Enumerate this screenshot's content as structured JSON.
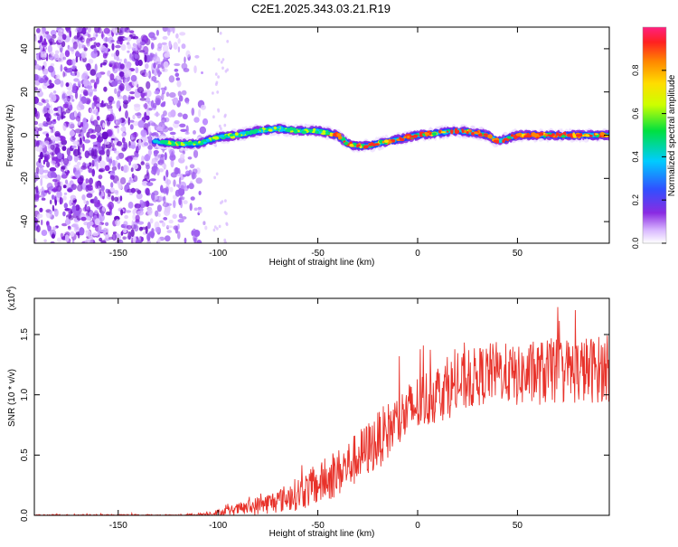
{
  "title": "C2E1.2025.343.03.21.R19",
  "chart_data": [
    {
      "type": "heatmap",
      "name": "spectrogram",
      "xlabel": "Height of straight line (km)",
      "ylabel": "Frequency (Hz)",
      "xlim": [
        -192,
        96
      ],
      "ylim": [
        -50,
        50
      ],
      "xticks": [
        -150,
        -100,
        -50,
        0,
        50
      ],
      "yticks": [
        -40,
        -20,
        0,
        20,
        40
      ],
      "xtick_labels": [
        "-150",
        "-100",
        "-50",
        "0",
        "50"
      ],
      "ytick_labels": [
        "-40",
        "-20",
        "0",
        "20",
        "40"
      ],
      "colorbar": {
        "label": "Normalized spectral amplitude",
        "range": [
          0,
          1
        ],
        "ticks": [
          0.0,
          0.2,
          0.4,
          0.6,
          0.8
        ],
        "tick_labels": [
          "0.0",
          "0.2",
          "0.4",
          "0.6",
          "0.8"
        ]
      },
      "noise_region_x": [
        -192,
        -110
      ],
      "signal_trace": {
        "x": [
          -130,
          -120,
          -110,
          -100,
          -90,
          -80,
          -70,
          -60,
          -50,
          -40,
          -35,
          -30,
          -25,
          -20,
          -10,
          0,
          10,
          20,
          30,
          35,
          40,
          50,
          60,
          70,
          80,
          96
        ],
        "freq": [
          -3,
          -4,
          -4,
          -1,
          0,
          2,
          3,
          2,
          2,
          0,
          -4,
          -5,
          -5,
          -4,
          -2,
          0,
          1,
          2,
          1,
          0,
          -3,
          0,
          0,
          0,
          0,
          0
        ]
      }
    },
    {
      "type": "line",
      "name": "snr",
      "xlabel": "Height of straight line (km)",
      "ylabel": "SNR (10 * v/v)",
      "scale_label": "(x10",
      "scale_exp": "4",
      "scale_close": ")",
      "xlim": [
        -192,
        96
      ],
      "ylim": [
        0,
        1.8
      ],
      "xticks": [
        -150,
        -100,
        -50,
        0,
        50
      ],
      "yticks": [
        0.0,
        0.5,
        1.0,
        1.5
      ],
      "xtick_labels": [
        "-150",
        "-100",
        "-50",
        "0",
        "50"
      ],
      "ytick_labels": [
        "0.0",
        "0.5",
        "1.0",
        "1.5"
      ],
      "color": "#e8322a",
      "envelope": {
        "x": [
          -192,
          -120,
          -110,
          -100,
          -90,
          -80,
          -70,
          -60,
          -50,
          -40,
          -30,
          -20,
          -10,
          0,
          10,
          20,
          30,
          40,
          50,
          60,
          70,
          80,
          96
        ],
        "mean": [
          0.0,
          0.0,
          0.005,
          0.02,
          0.05,
          0.08,
          0.12,
          0.18,
          0.25,
          0.35,
          0.48,
          0.62,
          0.78,
          0.92,
          1.02,
          1.08,
          1.15,
          1.2,
          1.15,
          1.18,
          1.2,
          1.2,
          1.22
        ],
        "spread": [
          0.008,
          0.008,
          0.015,
          0.03,
          0.05,
          0.08,
          0.1,
          0.14,
          0.17,
          0.2,
          0.22,
          0.24,
          0.24,
          0.25,
          0.25,
          0.25,
          0.25,
          0.25,
          0.25,
          0.27,
          0.28,
          0.28,
          0.28
        ]
      }
    }
  ]
}
